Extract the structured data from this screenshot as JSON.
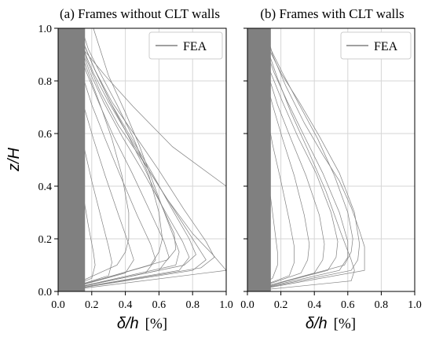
{
  "chart_data": [
    {
      "type": "line",
      "title": "(a) Frames without CLT walls",
      "xlabel_symbol": "δ/h",
      "xlabel_unit": "[%]",
      "ylabel": "z/H",
      "xlim": [
        0,
        1.0
      ],
      "ylim": [
        0,
        1.0
      ],
      "xticks": [
        "0.0",
        "0.2",
        "0.4",
        "0.6",
        "0.8",
        "1.0"
      ],
      "yticks": [
        "0.0",
        "0.2",
        "0.4",
        "0.6",
        "0.8",
        "1.0"
      ],
      "grid": true,
      "legend": {
        "position": "top-right",
        "entries": [
          "FEA"
        ]
      },
      "series_color": "#808080",
      "series": [
        {
          "x": [
            0.0,
            0.2,
            0.22,
            0.21,
            0.18,
            0.14,
            0.1,
            0.07,
            0.05,
            0.04,
            0.03
          ],
          "y": [
            0.0,
            0.05,
            0.1,
            0.15,
            0.25,
            0.4,
            0.55,
            0.7,
            0.82,
            0.92,
            1.0
          ]
        },
        {
          "x": [
            0.0,
            0.3,
            0.32,
            0.3,
            0.26,
            0.2,
            0.15,
            0.11,
            0.08,
            0.06,
            0.05
          ],
          "y": [
            0.0,
            0.06,
            0.11,
            0.17,
            0.27,
            0.42,
            0.56,
            0.7,
            0.82,
            0.92,
            1.0
          ]
        },
        {
          "x": [
            0.0,
            0.4,
            0.45,
            0.42,
            0.36,
            0.28,
            0.21,
            0.15,
            0.11,
            0.08,
            0.07
          ],
          "y": [
            0.0,
            0.07,
            0.12,
            0.18,
            0.29,
            0.44,
            0.58,
            0.71,
            0.83,
            0.92,
            1.0
          ]
        },
        {
          "x": [
            0.0,
            0.52,
            0.58,
            0.55,
            0.47,
            0.37,
            0.28,
            0.2,
            0.14,
            0.1,
            0.08
          ],
          "y": [
            0.0,
            0.07,
            0.12,
            0.18,
            0.29,
            0.44,
            0.58,
            0.71,
            0.83,
            0.92,
            1.0
          ]
        },
        {
          "x": [
            0.0,
            0.6,
            0.66,
            0.63,
            0.55,
            0.44,
            0.33,
            0.24,
            0.17,
            0.12,
            0.1
          ],
          "y": [
            0.0,
            0.08,
            0.13,
            0.19,
            0.3,
            0.45,
            0.59,
            0.72,
            0.83,
            0.92,
            1.0
          ]
        },
        {
          "x": [
            0.0,
            0.72,
            0.78,
            0.74,
            0.64,
            0.51,
            0.38,
            0.27,
            0.19,
            0.14,
            0.11
          ],
          "y": [
            0.0,
            0.08,
            0.13,
            0.19,
            0.3,
            0.45,
            0.59,
            0.72,
            0.83,
            0.92,
            1.0
          ]
        },
        {
          "x": [
            0.0,
            0.8,
            0.88,
            0.82,
            0.7,
            0.55,
            0.42,
            0.3,
            0.21,
            0.15,
            0.12
          ],
          "y": [
            0.0,
            0.08,
            0.12,
            0.18,
            0.3,
            0.45,
            0.59,
            0.72,
            0.83,
            0.92,
            1.0
          ]
        },
        {
          "x": [
            0.0,
            0.85,
            0.93,
            0.88,
            0.75,
            0.6,
            0.45,
            0.32,
            0.22,
            0.16,
            0.13
          ],
          "y": [
            0.0,
            0.09,
            0.13,
            0.19,
            0.31,
            0.46,
            0.6,
            0.72,
            0.84,
            0.93,
            1.0
          ]
        },
        {
          "x": [
            0.0,
            1.0,
            0.92,
            0.8,
            0.65,
            0.5,
            0.36,
            0.25,
            0.17,
            0.13
          ],
          "y": [
            0.0,
            0.08,
            0.14,
            0.22,
            0.35,
            0.5,
            0.63,
            0.76,
            0.88,
            1.0
          ]
        },
        {
          "x": [
            0.0,
            0.75,
            0.82,
            0.78,
            0.68,
            0.55,
            0.42,
            0.31,
            0.22,
            0.16,
            0.13
          ],
          "y": [
            0.0,
            0.1,
            0.14,
            0.2,
            0.31,
            0.46,
            0.6,
            0.72,
            0.84,
            0.93,
            1.0
          ]
        },
        {
          "x": [
            0.0,
            0.65,
            0.7,
            0.69,
            0.62,
            0.52,
            0.41,
            0.31,
            0.22,
            0.16,
            0.13
          ],
          "y": [
            0.0,
            0.12,
            0.16,
            0.22,
            0.32,
            0.46,
            0.6,
            0.72,
            0.84,
            0.93,
            1.0
          ]
        },
        {
          "x": [
            0.0,
            0.55,
            0.6,
            0.62,
            0.6,
            0.54,
            0.45,
            0.35,
            0.25,
            0.18,
            0.14
          ],
          "y": [
            0.0,
            0.1,
            0.15,
            0.2,
            0.3,
            0.44,
            0.58,
            0.71,
            0.83,
            0.92,
            1.0
          ]
        },
        {
          "x": [
            0.0,
            0.35,
            0.4,
            0.42,
            0.42,
            0.38,
            0.32,
            0.25,
            0.18,
            0.13,
            0.1
          ],
          "y": [
            0.0,
            0.1,
            0.15,
            0.2,
            0.3,
            0.44,
            0.58,
            0.71,
            0.83,
            0.92,
            1.0
          ]
        },
        {
          "x": [
            0.0,
            0.7,
            0.72,
            0.68,
            0.62,
            0.55,
            0.48,
            0.4,
            0.3,
            0.21
          ],
          "y": [
            0.0,
            0.1,
            0.15,
            0.22,
            0.32,
            0.44,
            0.56,
            0.68,
            0.82,
            1.0
          ]
        },
        {
          "x": [
            1.0,
            0.68,
            0.45,
            0.28,
            0.15,
            0.08
          ],
          "y": [
            0.4,
            0.55,
            0.7,
            0.82,
            0.92,
            1.0
          ]
        }
      ]
    },
    {
      "type": "line",
      "title": "(b) Frames with CLT walls",
      "xlabel_symbol": "δ/h",
      "xlabel_unit": "[%]",
      "xlim": [
        0,
        1.0
      ],
      "ylim": [
        0,
        1.0
      ],
      "xticks": [
        "0.0",
        "0.2",
        "0.4",
        "0.6",
        "0.8",
        "1.0"
      ],
      "grid": true,
      "legend": {
        "position": "top-right",
        "entries": [
          "FEA"
        ]
      },
      "series_color": "#808080",
      "series": [
        {
          "x": [
            0.0,
            0.15,
            0.18,
            0.18,
            0.16,
            0.13,
            0.1,
            0.07,
            0.05,
            0.03,
            0.02
          ],
          "y": [
            0.0,
            0.05,
            0.1,
            0.15,
            0.25,
            0.4,
            0.55,
            0.7,
            0.82,
            0.92,
            1.0
          ]
        },
        {
          "x": [
            0.0,
            0.25,
            0.28,
            0.28,
            0.25,
            0.2,
            0.15,
            0.11,
            0.08,
            0.05,
            0.04
          ],
          "y": [
            0.0,
            0.06,
            0.11,
            0.17,
            0.27,
            0.42,
            0.56,
            0.7,
            0.82,
            0.92,
            1.0
          ]
        },
        {
          "x": [
            0.0,
            0.32,
            0.36,
            0.37,
            0.34,
            0.28,
            0.21,
            0.15,
            0.1,
            0.07,
            0.05
          ],
          "y": [
            0.0,
            0.07,
            0.12,
            0.18,
            0.29,
            0.44,
            0.58,
            0.71,
            0.83,
            0.92,
            1.0
          ]
        },
        {
          "x": [
            0.0,
            0.4,
            0.45,
            0.46,
            0.43,
            0.35,
            0.26,
            0.18,
            0.12,
            0.08,
            0.06
          ],
          "y": [
            0.0,
            0.07,
            0.12,
            0.18,
            0.29,
            0.44,
            0.58,
            0.71,
            0.83,
            0.92,
            1.0
          ]
        },
        {
          "x": [
            0.0,
            0.48,
            0.53,
            0.54,
            0.5,
            0.41,
            0.3,
            0.21,
            0.14,
            0.09,
            0.07
          ],
          "y": [
            0.0,
            0.08,
            0.13,
            0.19,
            0.3,
            0.45,
            0.59,
            0.72,
            0.83,
            0.92,
            1.0
          ]
        },
        {
          "x": [
            0.0,
            0.55,
            0.6,
            0.6,
            0.55,
            0.45,
            0.34,
            0.24,
            0.16,
            0.11,
            0.08
          ],
          "y": [
            0.0,
            0.08,
            0.13,
            0.19,
            0.3,
            0.45,
            0.59,
            0.72,
            0.83,
            0.92,
            1.0
          ]
        },
        {
          "x": [
            0.0,
            0.62,
            0.66,
            0.67,
            0.64,
            0.55,
            0.43,
            0.31,
            0.2,
            0.13,
            0.1
          ],
          "y": [
            0.0,
            0.08,
            0.12,
            0.18,
            0.3,
            0.45,
            0.59,
            0.72,
            0.83,
            0.92,
            1.0
          ]
        },
        {
          "x": [
            0.0,
            0.7,
            0.7,
            0.66,
            0.62,
            0.55,
            0.45,
            0.34,
            0.23,
            0.15,
            0.11
          ],
          "y": [
            0.0,
            0.08,
            0.17,
            0.25,
            0.32,
            0.42,
            0.52,
            0.64,
            0.78,
            0.9,
            1.0
          ]
        },
        {
          "x": [
            0.0,
            0.58,
            0.62,
            0.63,
            0.6,
            0.52,
            0.42,
            0.31,
            0.21,
            0.14,
            0.1
          ],
          "y": [
            0.0,
            0.1,
            0.15,
            0.2,
            0.3,
            0.44,
            0.58,
            0.71,
            0.83,
            0.92,
            1.0
          ]
        },
        {
          "x": [
            0.0,
            0.62,
            0.64,
            0.62,
            0.56,
            0.47,
            0.36,
            0.26,
            0.18,
            0.12,
            0.09
          ],
          "y": [
            0.0,
            0.04,
            0.08,
            0.12,
            0.22,
            0.38,
            0.54,
            0.68,
            0.81,
            0.92,
            1.0
          ]
        }
      ]
    }
  ]
}
